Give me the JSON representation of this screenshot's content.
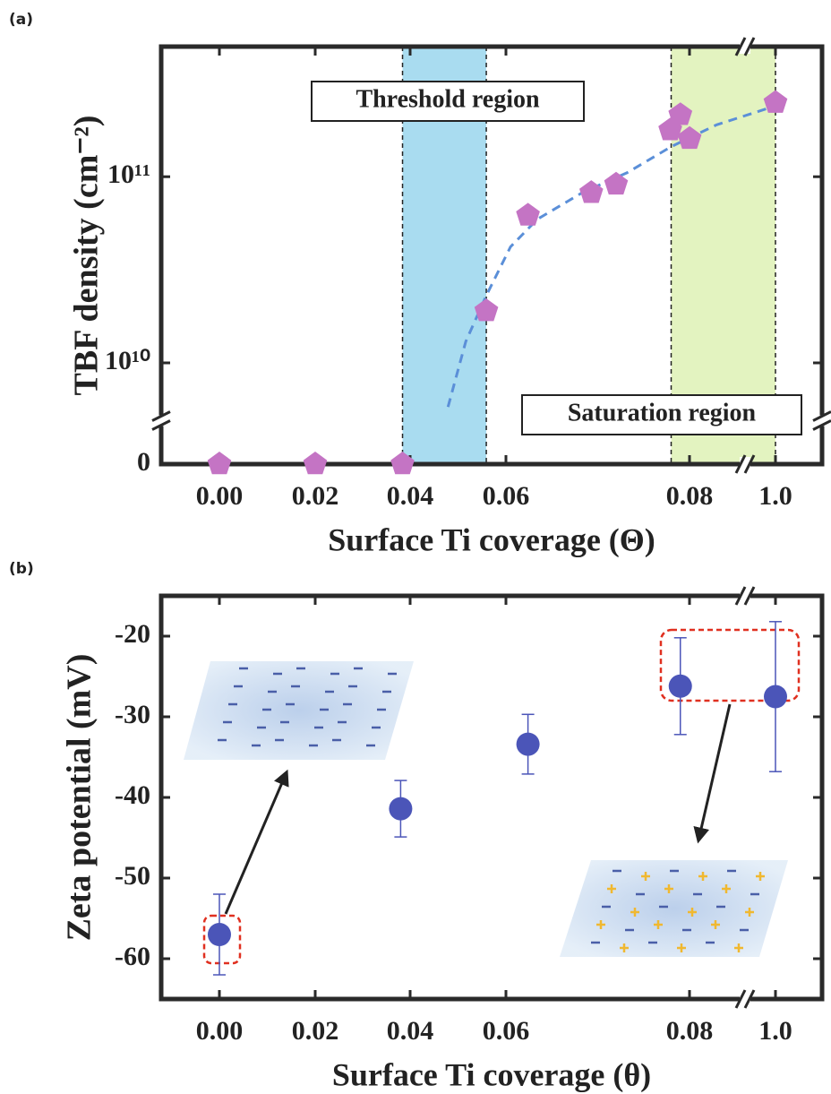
{
  "chart_data": [
    {
      "type": "scatter",
      "label": "(a)",
      "x_label": "Surface Ti coverage (Θ)",
      "y_label": "TBF density (cm⁻²)",
      "yscale": "log",
      "marker": "pentagon",
      "color": "#c474c4",
      "xlim": [
        -0.012,
        1.05
      ],
      "xticks": [
        {
          "value": 0,
          "label": "0.00"
        },
        0.02,
        0.04,
        0.06,
        0.08,
        {
          "value": 1,
          "label": "1.0"
        }
      ],
      "ylim": [
        0,
        500000000000
      ],
      "yticks": [
        0,
        {
          "value": 10000000000,
          "label": "10¹⁰"
        },
        {
          "value": 100000000000,
          "label": "10¹¹"
        }
      ],
      "x": [
        0,
        0.02,
        0.0384,
        0.0559,
        0.0624,
        0.0693,
        0.072,
        0.0779,
        0.079,
        0.0805,
        1.0
      ],
      "values": [
        0,
        0,
        0,
        19000000000,
        62000000000,
        82000000000,
        91000000000,
        178000000000,
        215000000000,
        160000000000,
        250000000000
      ],
      "fit": {
        "color": "#5b8fd8",
        "x": [
          0.0479,
          0.0516,
          0.0559,
          0.0605,
          0.0634,
          0.0683,
          0.0732,
          0.078,
          0.37,
          1.0
        ],
        "values": [
          5800000000,
          13000000000,
          23000000000,
          42000000000,
          59000000000,
          82000000000,
          105000000000,
          145000000000,
          190000000000,
          240000000000
        ]
      },
      "shaded_regions": [
        {
          "xlim": [
            0.0384,
            0.0559
          ],
          "color": "#a9dcf0"
        },
        {
          "xlim": [
            0.078,
            1.0
          ],
          "color": "#e3f3c0"
        }
      ],
      "annotations": [
        "Threshold region",
        "Saturation region"
      ]
    },
    {
      "type": "scatter",
      "label": "(b)",
      "x_label": "Surface Ti coverage (θ)",
      "y_label": "Zeta potential (mV)",
      "marker": "circle",
      "color": "#4b55b8",
      "xlim": [
        -0.012,
        1.05
      ],
      "xticks": [
        {
          "value": 0,
          "label": "0.00"
        },
        0.02,
        0.04,
        0.06,
        0.08,
        {
          "value": 1,
          "label": "1.0"
        }
      ],
      "ylim": [
        -65,
        -15
      ],
      "yticks": [
        -60,
        -50,
        -40,
        -30,
        -20
      ],
      "x": [
        0,
        0.038,
        0.0624,
        0.079,
        1.0
      ],
      "values": [
        -57.0,
        -41.4,
        -33.4,
        -26.2,
        -27.5
      ],
      "errors": [
        5.0,
        3.5,
        3.7,
        6.0,
        9.3
      ]
    }
  ]
}
